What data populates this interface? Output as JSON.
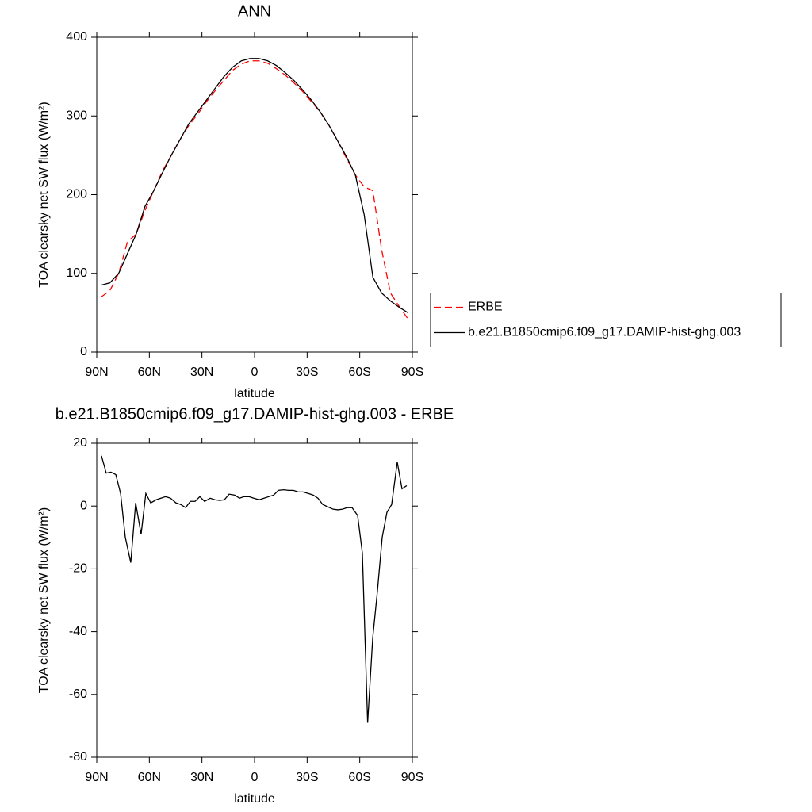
{
  "chart_data": [
    {
      "type": "line",
      "title": "ANN",
      "xlabel": "latitude",
      "ylabel": "TOA clearsky net SW flux (W/m²)",
      "xlim": [
        90,
        -90
      ],
      "ylim": [
        0,
        400
      ],
      "xticks": [
        {
          "value": 90,
          "label": "90N"
        },
        {
          "value": 60,
          "label": "60N"
        },
        {
          "value": 30,
          "label": "30N"
        },
        0,
        {
          "value": -30,
          "label": "30S"
        },
        {
          "value": -60,
          "label": "60S"
        },
        {
          "value": -90,
          "label": "90S"
        }
      ],
      "yticks": [
        0,
        100,
        200,
        300,
        400
      ],
      "legend": "outside-right",
      "x": [
        87.5,
        82.5,
        77.5,
        72.5,
        67.5,
        62.5,
        57.5,
        52.5,
        47.5,
        42.5,
        37.5,
        32.5,
        27.5,
        22.5,
        17.5,
        12.5,
        7.5,
        2.5,
        -2.5,
        -7.5,
        -12.5,
        -17.5,
        -22.5,
        -27.5,
        -32.5,
        -37.5,
        -42.5,
        -47.5,
        -52.5,
        -57.5,
        -62.5,
        -67.5,
        -72.5,
        -77.5,
        -82.5,
        -87.5
      ],
      "series": [
        {
          "name": "ERBE",
          "color": "#ff0000",
          "style": "dashed",
          "values": [
            70,
            78,
            100,
            140,
            150,
            180,
            205,
            230,
            250,
            270,
            288,
            302,
            318,
            332,
            345,
            358,
            366,
            370,
            370,
            367,
            360,
            352,
            342,
            331,
            318,
            305,
            288,
            268,
            246,
            225,
            210,
            205,
            130,
            75,
            58,
            42
          ]
        },
        {
          "name": "b.e21.B1850cmip6.f09_g17.DAMIP-hist-ghg.003",
          "color": "#000000",
          "style": "solid",
          "values": [
            85,
            88,
            100,
            125,
            150,
            185,
            205,
            228,
            250,
            270,
            290,
            305,
            320,
            335,
            350,
            362,
            370,
            373,
            373,
            370,
            364,
            355,
            345,
            333,
            320,
            305,
            288,
            268,
            248,
            225,
            175,
            95,
            75,
            65,
            57,
            50
          ]
        }
      ]
    },
    {
      "type": "line",
      "title": "b.e21.B1850cmip6.f09_g17.DAMIP-hist-ghg.003 - ERBE",
      "xlabel": "latitude",
      "ylabel": "TOA clearsky net SW flux (W/m²)",
      "xlim": [
        90,
        -90
      ],
      "ylim": [
        -80,
        20
      ],
      "xticks": [
        {
          "value": 90,
          "label": "90N"
        },
        {
          "value": 60,
          "label": "60N"
        },
        {
          "value": 30,
          "label": "30N"
        },
        0,
        {
          "value": -30,
          "label": "30S"
        },
        {
          "value": -60,
          "label": "60S"
        },
        {
          "value": -90,
          "label": "90S"
        }
      ],
      "yticks": [
        -80,
        -60,
        -40,
        -20,
        0,
        20
      ],
      "x": [
        87.3,
        84.6,
        81.9,
        79.1,
        76.4,
        73.7,
        70.6,
        67.8,
        64.7,
        62.0,
        59.2,
        56.1,
        53.4,
        50.7,
        47.9,
        44.8,
        42.1,
        39.3,
        36.6,
        33.9,
        31.2,
        28.5,
        25.3,
        22.6,
        19.9,
        17.2,
        14.5,
        11.3,
        8.6,
        5.9,
        3.2,
        0.5,
        -2.7,
        -5.4,
        -8.1,
        -10.9,
        -13.6,
        -16.7,
        -19.4,
        -22.2,
        -24.9,
        -27.6,
        -30.8,
        -33.5,
        -36.2,
        -38.9,
        -41.6,
        -44.8,
        -47.5,
        -50.2,
        -52.9,
        -55.6,
        -58.8,
        -61.5,
        -64.5,
        -67.4,
        -70.1,
        -72.8,
        -75.5,
        -78.2,
        -81.4,
        -84.1,
        -86.8
      ],
      "series": [
        {
          "color": "#000000",
          "style": "solid",
          "values": [
            16,
            10.5,
            10.8,
            10,
            4,
            -10,
            -18,
            1,
            -9,
            4,
            1,
            2,
            2.5,
            3,
            2.5,
            1,
            0.5,
            -0.5,
            1.5,
            1.5,
            3,
            1.5,
            2.5,
            2,
            1.8,
            2,
            3.8,
            3.5,
            2.5,
            3,
            3,
            2.5,
            2,
            2.5,
            3,
            3.5,
            5,
            5.2,
            5,
            5,
            4.5,
            4.5,
            4,
            3.5,
            2.5,
            0.5,
            -0.2,
            -1,
            -1.2,
            -1,
            -0.5,
            -0.5,
            -3,
            -15,
            -69,
            -42,
            -27,
            -10,
            -2,
            0.5,
            14,
            5.5,
            6.5
          ]
        }
      ]
    }
  ]
}
